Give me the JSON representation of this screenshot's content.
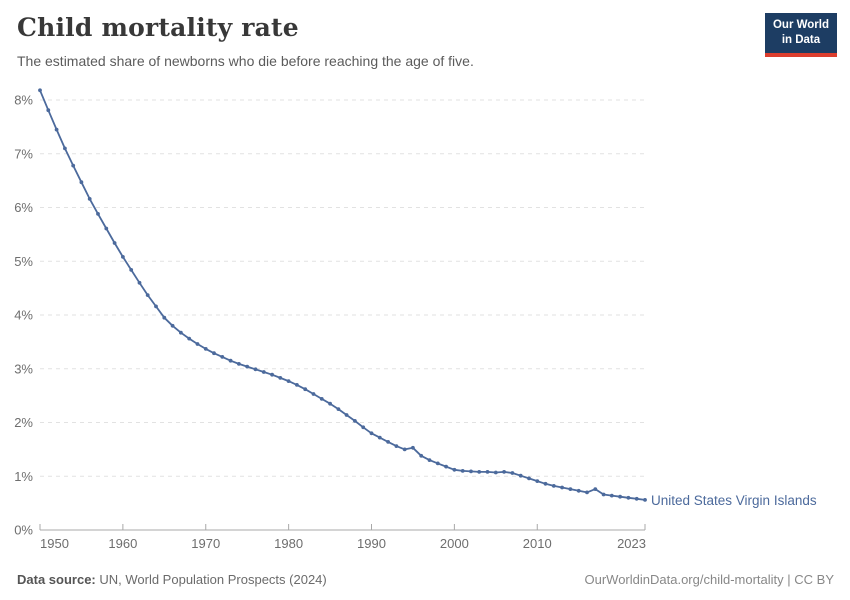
{
  "header": {
    "title": "Child mortality rate",
    "subtitle": "The estimated share of newborns who die before reaching the age of five."
  },
  "logo": {
    "line1": "Our World",
    "line2": "in Data"
  },
  "chart_data": {
    "type": "line",
    "title": "Child mortality rate",
    "entity_label": "United States Virgin Islands",
    "series": [
      {
        "name": "United States Virgin Islands",
        "x": [
          1950,
          1951,
          1952,
          1953,
          1954,
          1955,
          1956,
          1957,
          1958,
          1959,
          1960,
          1961,
          1962,
          1963,
          1964,
          1965,
          1966,
          1967,
          1968,
          1969,
          1970,
          1971,
          1972,
          1973,
          1974,
          1975,
          1976,
          1977,
          1978,
          1979,
          1980,
          1981,
          1982,
          1983,
          1984,
          1985,
          1986,
          1987,
          1988,
          1989,
          1990,
          1991,
          1992,
          1993,
          1994,
          1995,
          1996,
          1997,
          1998,
          1999,
          2000,
          2001,
          2002,
          2003,
          2004,
          2005,
          2006,
          2007,
          2008,
          2009,
          2010,
          2011,
          2012,
          2013,
          2014,
          2015,
          2016,
          2017,
          2018,
          2019,
          2020,
          2021,
          2022,
          2023
        ],
        "values": [
          8.18,
          7.81,
          7.45,
          7.1,
          6.78,
          6.47,
          6.16,
          5.88,
          5.61,
          5.34,
          5.08,
          4.84,
          4.6,
          4.37,
          4.16,
          3.95,
          3.8,
          3.67,
          3.56,
          3.46,
          3.37,
          3.29,
          3.22,
          3.15,
          3.09,
          3.04,
          2.99,
          2.94,
          2.89,
          2.83,
          2.77,
          2.7,
          2.62,
          2.53,
          2.44,
          2.35,
          2.25,
          2.14,
          2.03,
          1.91,
          1.8,
          1.72,
          1.64,
          1.56,
          1.5,
          1.53,
          1.38,
          1.3,
          1.24,
          1.18,
          1.12,
          1.1,
          1.09,
          1.08,
          1.08,
          1.07,
          1.08,
          1.06,
          1.01,
          0.96,
          0.91,
          0.86,
          0.82,
          0.79,
          0.76,
          0.73,
          0.7,
          0.76,
          0.66,
          0.64,
          0.62,
          0.6,
          0.58,
          0.56
        ]
      }
    ],
    "xlim": [
      1950,
      2023
    ],
    "ylim": [
      0,
      8
    ],
    "yticks": [
      0,
      1,
      2,
      3,
      4,
      5,
      6,
      7,
      8
    ],
    "ytick_suffix": "%",
    "xticks": [
      1950,
      1960,
      1970,
      1980,
      1990,
      2000,
      2010,
      2023
    ],
    "grid": "dashed-horizontal",
    "legend_position": "right-of-line-end",
    "line_color": "#4c6a9c",
    "grid_color": "#e2e2e2",
    "axis_color": "#a8a8a8",
    "tick_label_color": "#6e6e6e"
  },
  "footer": {
    "source_label": "Data source:",
    "source_value": " UN, World Population Prospects (2024)",
    "right_text": "OurWorldinData.org/child-mortality | CC BY"
  }
}
